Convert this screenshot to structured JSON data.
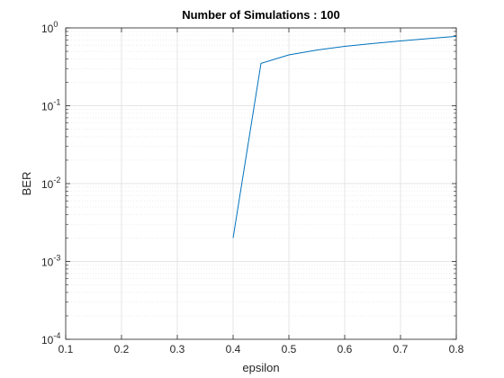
{
  "chart_data": {
    "type": "line",
    "title": "Number of Simulations : 100",
    "xlabel": "epsilon",
    "ylabel": "BER",
    "xlim": [
      0.1,
      0.8
    ],
    "ylim": [
      0.0001,
      1
    ],
    "yscale": "log",
    "grid": true,
    "minor_grid": true,
    "x_ticks": [
      0.1,
      0.2,
      0.3,
      0.4,
      0.5,
      0.6,
      0.7,
      0.8
    ],
    "x_tick_labels": [
      "0.1",
      "0.2",
      "0.3",
      "0.4",
      "0.5",
      "0.6",
      "0.7",
      "0.8"
    ],
    "y_ticks": [
      0.0001,
      0.001,
      0.01,
      0.1,
      1
    ],
    "y_tick_labels": [
      {
        "base": "10",
        "exp": "-4"
      },
      {
        "base": "10",
        "exp": "-3"
      },
      {
        "base": "10",
        "exp": "-2"
      },
      {
        "base": "10",
        "exp": "-1"
      },
      {
        "base": "10",
        "exp": "0"
      }
    ],
    "series": [
      {
        "color": "#0072bd",
        "x": [
          0.4,
          0.45,
          0.5,
          0.55,
          0.6,
          0.65,
          0.7,
          0.75,
          0.8
        ],
        "y": [
          0.002,
          0.35,
          0.45,
          0.52,
          0.58,
          0.63,
          0.68,
          0.73,
          0.78
        ]
      }
    ]
  }
}
